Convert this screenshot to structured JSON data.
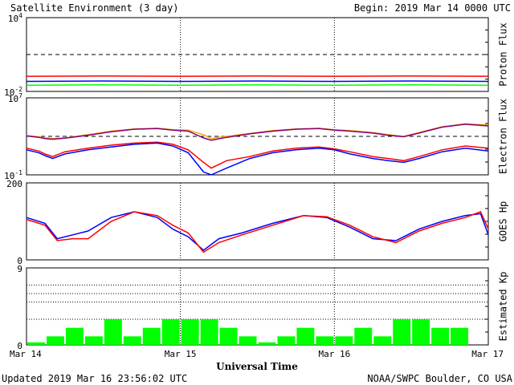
{
  "header": {
    "title": "Satellite Environment (3 day)",
    "begin": "Begin:  2019 Mar 14 0000 UTC"
  },
  "footer": {
    "updated": "Updated 2019 Mar 16 23:56:02 UTC",
    "credit": "NOAA/SWPC Boulder, CO USA"
  },
  "colors": {
    "red": "#ff0000",
    "blue": "#0000ff",
    "green": "#00ff00",
    "orange": "#ffa500",
    "purple": "#800080"
  },
  "chart_data": [
    {
      "type": "line",
      "ylabel": "Proton Flux",
      "yscale": "log",
      "ylim": [
        0.01,
        10000
      ],
      "yticks": [
        {
          "value": 10000,
          "base": "10",
          "exp": "4"
        },
        {
          "value": 0.01,
          "base": "10",
          "exp": "-2"
        }
      ],
      "reference_level": 10,
      "x": [
        0,
        0.5,
        1,
        1.5,
        2,
        2.5,
        3
      ],
      "series": [
        {
          "color": "#ff0000",
          "values": [
            0.17,
            0.18,
            0.17,
            0.18,
            0.17,
            0.18,
            0.17
          ]
        },
        {
          "color": "#0000ff",
          "values": [
            0.065,
            0.07,
            0.065,
            0.07,
            0.065,
            0.07,
            0.065
          ]
        },
        {
          "color": "#00ff00",
          "values": [
            0.032,
            0.035,
            0.032,
            0.035,
            0.032,
            0.035,
            0.032
          ]
        }
      ]
    },
    {
      "type": "line",
      "ylabel": "Electron Flux",
      "yscale": "log",
      "ylim": [
        0.1,
        10000000
      ],
      "yticks": [
        {
          "value": 10000000,
          "base": "10",
          "exp": "7"
        },
        {
          "value": 0.1,
          "base": "10",
          "exp": "-1"
        }
      ],
      "reference_level": 1000,
      "x": [
        0,
        0.08,
        0.12,
        0.17,
        0.25,
        0.4,
        0.55,
        0.7,
        0.85,
        0.95,
        1.05,
        1.15,
        1.2,
        1.3,
        1.45,
        1.6,
        1.75,
        1.9,
        2.0,
        2.1,
        2.25,
        2.35,
        2.45,
        2.55,
        2.7,
        2.85,
        3.0
      ],
      "series": [
        {
          "color": "#ffa500",
          "values": [
            1200,
            900,
            700,
            600,
            700,
            1500,
            3500,
            6000,
            7000,
            5000,
            4500,
            1500,
            600,
            1000,
            2000,
            4000,
            6000,
            7000,
            5000,
            4000,
            2500,
            1500,
            1000,
            2500,
            10000,
            20000,
            15000
          ]
        },
        {
          "color": "#800080",
          "values": [
            1100,
            800,
            600,
            500,
            650,
            1300,
            3000,
            5500,
            6500,
            4500,
            3500,
            700,
            400,
            800,
            1800,
            3500,
            5500,
            6500,
            4500,
            3500,
            2200,
            1300,
            900,
            2200,
            9000,
            18000,
            12000
          ]
        },
        {
          "color": "#ff0000",
          "values": [
            60,
            30,
            15,
            8,
            25,
            60,
            120,
            200,
            250,
            150,
            40,
            2,
            0.5,
            3,
            8,
            30,
            60,
            80,
            50,
            25,
            8,
            5,
            3,
            8,
            40,
            100,
            60
          ]
        },
        {
          "color": "#0000ff",
          "values": [
            40,
            20,
            10,
            5,
            15,
            40,
            80,
            150,
            200,
            100,
            20,
            0.2,
            0.1,
            0.5,
            5,
            20,
            40,
            60,
            40,
            15,
            5,
            3,
            2,
            5,
            25,
            60,
            30
          ]
        }
      ]
    },
    {
      "type": "line",
      "ylabel": "GOES Hp",
      "ylim": [
        0,
        200
      ],
      "yticks": [
        {
          "value": 200,
          "label": "200"
        },
        {
          "value": 0,
          "label": "0"
        }
      ],
      "x": [
        0,
        0.12,
        0.2,
        0.3,
        0.4,
        0.55,
        0.7,
        0.85,
        0.95,
        1.05,
        1.15,
        1.25,
        1.4,
        1.6,
        1.8,
        1.95,
        2.1,
        2.25,
        2.4,
        2.55,
        2.7,
        2.85,
        2.95,
        3.0
      ],
      "series": [
        {
          "color": "#0000ff",
          "values": [
            110,
            95,
            55,
            65,
            75,
            110,
            125,
            110,
            80,
            60,
            25,
            55,
            70,
            95,
            115,
            110,
            85,
            55,
            50,
            80,
            100,
            115,
            120,
            65
          ]
        },
        {
          "color": "#ff0000",
          "values": [
            105,
            90,
            50,
            55,
            55,
            100,
            125,
            115,
            90,
            70,
            20,
            45,
            65,
            90,
            115,
            112,
            90,
            60,
            45,
            75,
            95,
            110,
            125,
            80
          ]
        }
      ]
    },
    {
      "type": "bar",
      "ylabel": "Estimated Kp",
      "ylim": [
        0,
        9
      ],
      "yticks": [
        {
          "value": 9,
          "label": "9"
        },
        {
          "value": 0,
          "label": "0"
        }
      ],
      "reference_levels": [
        3,
        5,
        6,
        7
      ],
      "bar_color": "#00ff00",
      "values": [
        0.3,
        1.0,
        2.0,
        1.0,
        3.0,
        1.0,
        2.0,
        3.0,
        3.0,
        3.0,
        2.0,
        1.0,
        0.3,
        1.0,
        2.0,
        1.0,
        1.0,
        2.0,
        1.0,
        3.0,
        3.0,
        2.0,
        2.0,
        0
      ]
    }
  ],
  "xaxis": {
    "label": "Universal Time",
    "ticks": [
      "Mar 14",
      "Mar 15",
      "Mar 16",
      "Mar 17"
    ]
  }
}
